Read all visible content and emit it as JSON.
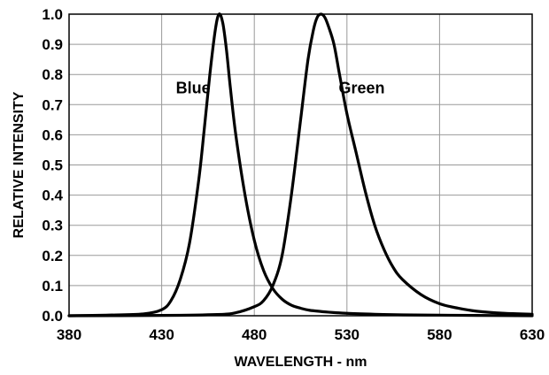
{
  "chart_data": {
    "type": "line",
    "title": "",
    "xlabel": "WAVELENGTH - nm",
    "ylabel": "RELATIVE INTENSITY",
    "xlim": [
      380,
      630
    ],
    "ylim": [
      0.0,
      1.0
    ],
    "x_ticks": [
      "380",
      "430",
      "480",
      "530",
      "580",
      "630"
    ],
    "y_ticks": [
      "0.0",
      "0.1",
      "0.2",
      "0.3",
      "0.4",
      "0.5",
      "0.6",
      "0.7",
      "0.8",
      "0.9",
      "1.0"
    ],
    "grid": true,
    "legend": "none",
    "series": [
      {
        "name": "Blue",
        "color": "#000000",
        "x": [
          380,
          400,
          420,
          430,
          435,
          440,
          445,
          450,
          453,
          456,
          459,
          461,
          463,
          465,
          467,
          470,
          475,
          480,
          485,
          490,
          495,
          500,
          505,
          510,
          520,
          530,
          545,
          560,
          580,
          600,
          630
        ],
        "y": [
          0.0,
          0.002,
          0.006,
          0.02,
          0.05,
          0.12,
          0.24,
          0.45,
          0.62,
          0.8,
          0.95,
          1.0,
          0.97,
          0.88,
          0.76,
          0.6,
          0.4,
          0.25,
          0.15,
          0.09,
          0.055,
          0.035,
          0.025,
          0.018,
          0.012,
          0.008,
          0.005,
          0.003,
          0.002,
          0.001,
          0.0
        ]
      },
      {
        "name": "Green",
        "color": "#000000",
        "x": [
          380,
          430,
          460,
          470,
          480,
          485,
          490,
          495,
          500,
          505,
          509,
          512,
          514,
          516,
          518,
          520,
          523,
          526,
          530,
          535,
          540,
          545,
          550,
          555,
          560,
          570,
          580,
          590,
          600,
          615,
          630
        ],
        "y": [
          0.0,
          0.001,
          0.004,
          0.01,
          0.03,
          0.05,
          0.1,
          0.2,
          0.4,
          0.65,
          0.85,
          0.95,
          0.99,
          1.0,
          0.99,
          0.96,
          0.9,
          0.8,
          0.67,
          0.54,
          0.41,
          0.3,
          0.22,
          0.16,
          0.12,
          0.07,
          0.04,
          0.025,
          0.015,
          0.008,
          0.005
        ]
      }
    ],
    "annotations": [
      {
        "text": "Blue",
        "x": 447,
        "y": 0.755
      },
      {
        "text": "Green",
        "x": 538,
        "y": 0.755
      }
    ]
  }
}
